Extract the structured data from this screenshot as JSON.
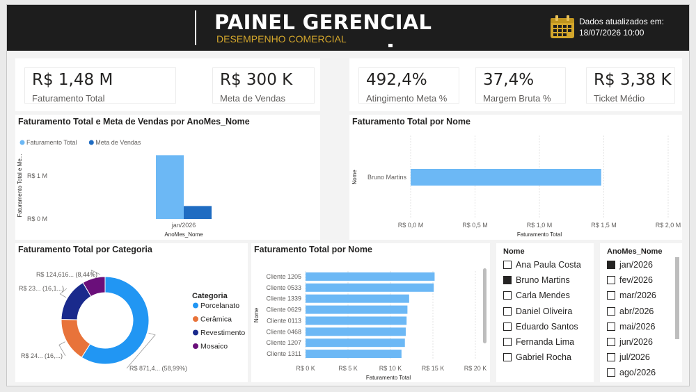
{
  "header": {
    "title": "PAINEL GERENCIAL",
    "subtitle": "DESEMPENHO COMERCIAL",
    "updated_label": "Dados atualizados em:",
    "updated_value": "18/07/2026 10:00",
    "calendar_icon": "calendar-icon",
    "accent_color": "#d4a72c"
  },
  "kpis": [
    {
      "value": "R$ 1,48 M",
      "label": "Faturamento Total"
    },
    {
      "value": "R$ 300 K",
      "label": "Meta de Vendas"
    },
    {
      "value": "492,4%",
      "label": "Atingimento Meta %"
    },
    {
      "value": "37,4%",
      "label": "Margem Bruta %"
    },
    {
      "value": "R$ 3,38 K",
      "label": "Ticket Médio"
    }
  ],
  "chart_data": [
    {
      "type": "bar",
      "title": "Faturamento Total e Meta de Vendas por AnoMes_Nome",
      "xlabel": "AnoMes_Nome",
      "ylabel": "Faturamento Total e Me...",
      "categories": [
        "jan/2026"
      ],
      "series": [
        {
          "name": "Faturamento Total",
          "values": [
            1.48
          ],
          "color": "#6cb8f5"
        },
        {
          "name": "Meta de Vendas",
          "values": [
            0.3
          ],
          "color": "#1f6cc2"
        }
      ],
      "yticks": [
        {
          "v": 0,
          "label": "R$ 0 M"
        },
        {
          "v": 1,
          "label": "R$ 1 M"
        }
      ],
      "ylim": [
        0,
        1.55
      ],
      "legend": "top-left"
    },
    {
      "type": "bar",
      "orientation": "horizontal",
      "title": "Faturamento Total por Nome",
      "xlabel": "Faturamento Total",
      "ylabel": "Nome",
      "categories": [
        "Bruno Martins"
      ],
      "values": [
        1.48
      ],
      "color": "#6cb8f5",
      "xticks": [
        {
          "v": 0,
          "label": "R$ 0,0 M"
        },
        {
          "v": 0.5,
          "label": "R$ 0,5 M"
        },
        {
          "v": 1,
          "label": "R$ 1,0 M"
        },
        {
          "v": 1.5,
          "label": "R$ 1,5 M"
        },
        {
          "v": 2,
          "label": "R$ 2,0 M"
        }
      ],
      "xlim": [
        0,
        2
      ],
      "grid": true
    },
    {
      "type": "pie",
      "donut": true,
      "title": "Faturamento Total por Categoria",
      "legend_title": "Categoria",
      "slices": [
        {
          "name": "Porcelanato",
          "value": 58.99,
          "color": "#2196f3",
          "label": "R$ 871,4... (58,99%)"
        },
        {
          "name": "Cerâmica",
          "value": 16.4,
          "color": "#e8733a",
          "label": "R$ 24... (16,...)"
        },
        {
          "name": "Revestimento",
          "value": 16.17,
          "color": "#1a2a8c",
          "label": "R$ 23... (16,1...)"
        },
        {
          "name": "Mosaico",
          "value": 8.44,
          "color": "#6a0f7a",
          "label": "R$ 124,616... (8,44%)"
        }
      ]
    },
    {
      "type": "bar",
      "orientation": "horizontal",
      "title": "Faturamento Total por Nome",
      "xlabel": "Faturamento Total",
      "ylabel": "Nome",
      "categories": [
        "Cliente 1205",
        "Cliente 0533",
        "Cliente 1339",
        "Cliente 0629",
        "Cliente 0113",
        "Cliente 0468",
        "Cliente 1207",
        "Cliente 1311"
      ],
      "values": [
        15200,
        15100,
        12200,
        12000,
        11900,
        11800,
        11700,
        11300
      ],
      "color": "#6cb8f5",
      "xticks": [
        {
          "v": 0,
          "label": "R$ 0 K"
        },
        {
          "v": 5000,
          "label": "R$ 5 K"
        },
        {
          "v": 10000,
          "label": "R$ 10 K"
        },
        {
          "v": 15000,
          "label": "R$ 15 K"
        },
        {
          "v": 20000,
          "label": "R$ 20 K"
        }
      ],
      "xlim": [
        0,
        20000
      ],
      "grid": true
    }
  ],
  "slicer_nome": {
    "title": "Nome",
    "items": [
      {
        "label": "Ana Paula Costa",
        "checked": false
      },
      {
        "label": "Bruno Martins",
        "checked": true
      },
      {
        "label": "Carla Mendes",
        "checked": false
      },
      {
        "label": "Daniel Oliveira",
        "checked": false
      },
      {
        "label": "Eduardo Santos",
        "checked": false
      },
      {
        "label": "Fernanda Lima",
        "checked": false
      },
      {
        "label": "Gabriel Rocha",
        "checked": false
      }
    ]
  },
  "slicer_mes": {
    "title": "AnoMes_Nome",
    "items": [
      {
        "label": "jan/2026",
        "checked": true
      },
      {
        "label": "fev/2026",
        "checked": false
      },
      {
        "label": "mar/2026",
        "checked": false
      },
      {
        "label": "abr/2026",
        "checked": false
      },
      {
        "label": "mai/2026",
        "checked": false
      },
      {
        "label": "jun/2026",
        "checked": false
      },
      {
        "label": "jul/2026",
        "checked": false
      },
      {
        "label": "ago/2026",
        "checked": false
      }
    ]
  }
}
